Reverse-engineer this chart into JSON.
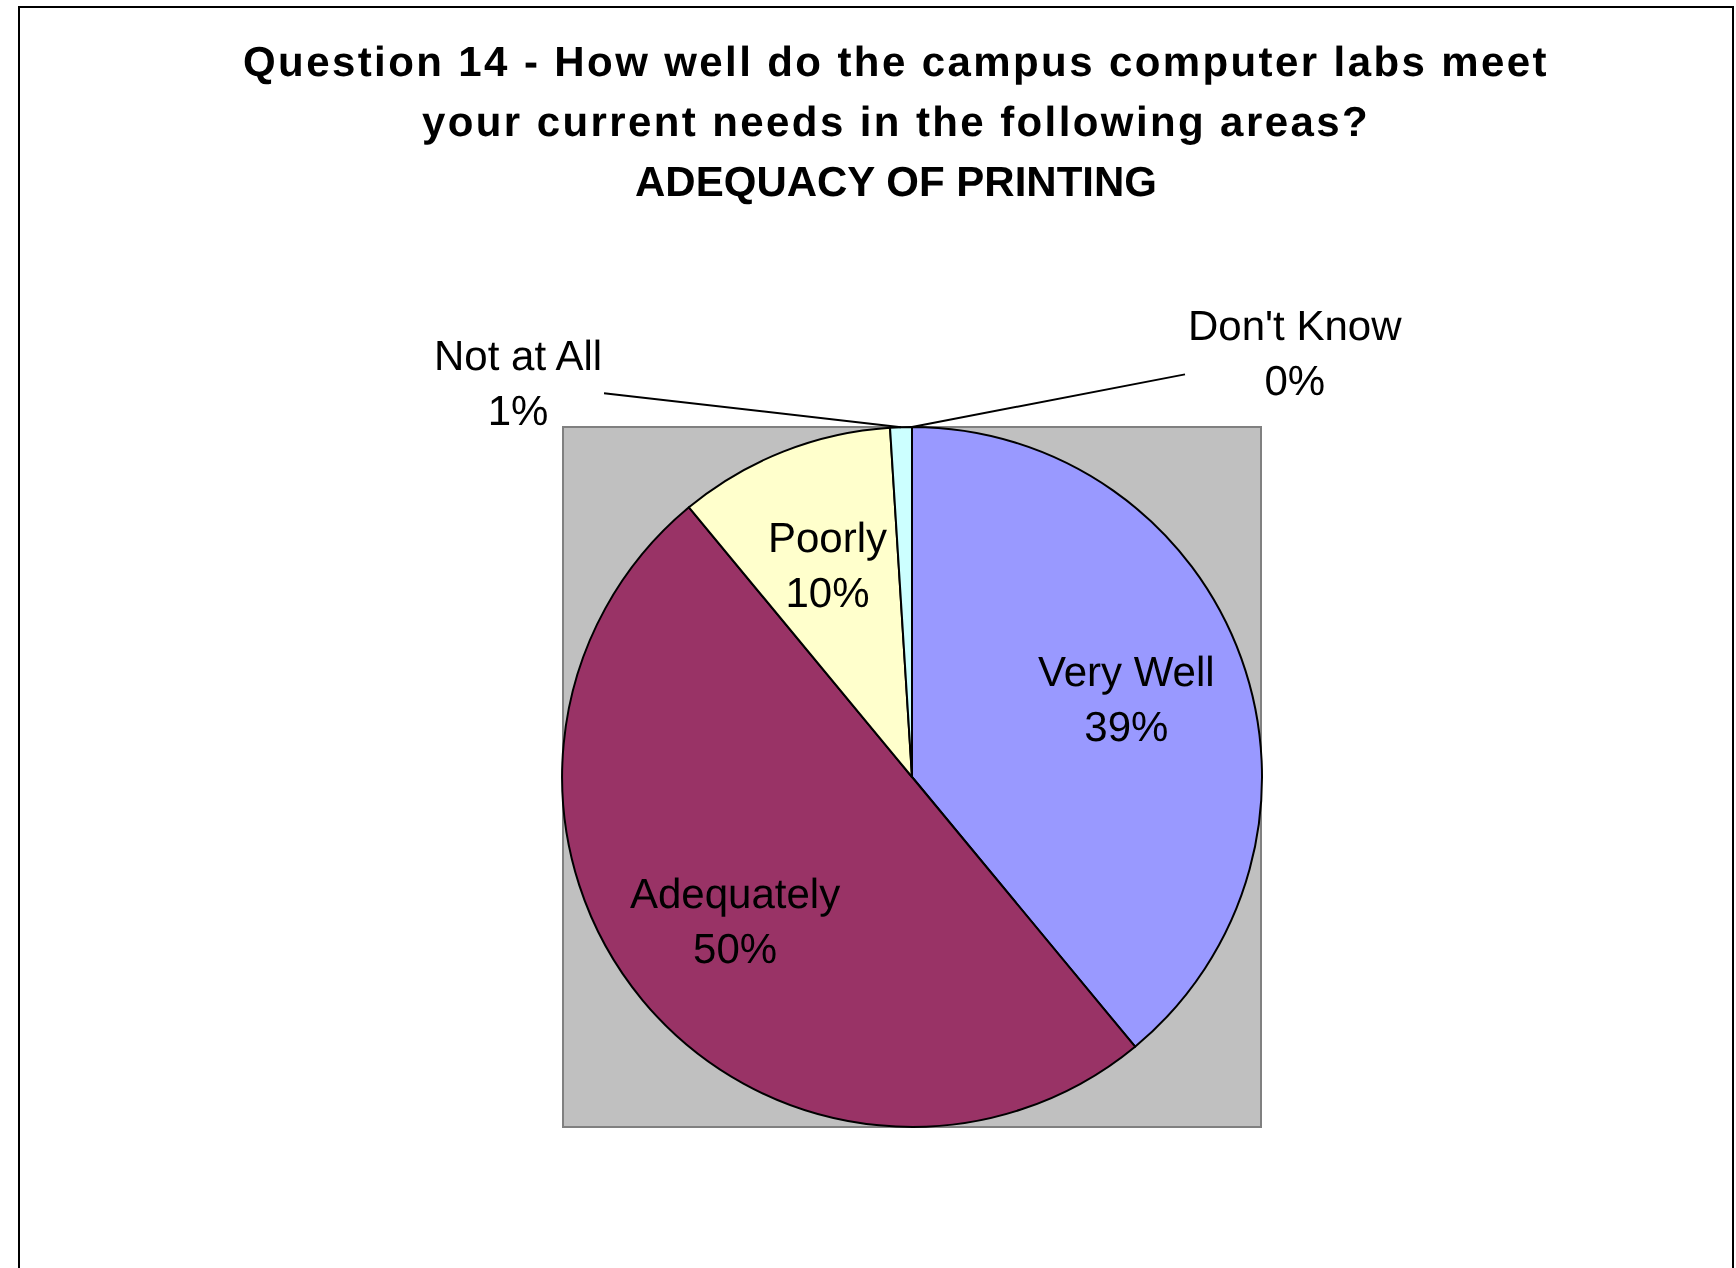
{
  "chart_data": {
    "type": "pie",
    "title": "Question 14 - How well do the campus computer labs meet your current needs in the following areas?",
    "subtitle": "ADEQUACY OF PRINTING",
    "categories": [
      "Very Well",
      "Adequately",
      "Poorly",
      "Not at All",
      "Don't Know"
    ],
    "values": [
      39,
      50,
      10,
      1,
      0
    ],
    "colors": [
      "#9999ff",
      "#993366",
      "#ffffcc",
      "#ccffff",
      "#660066"
    ],
    "value_labels": [
      "39%",
      "50%",
      "10%",
      "1%",
      "0%"
    ],
    "legend": false
  }
}
